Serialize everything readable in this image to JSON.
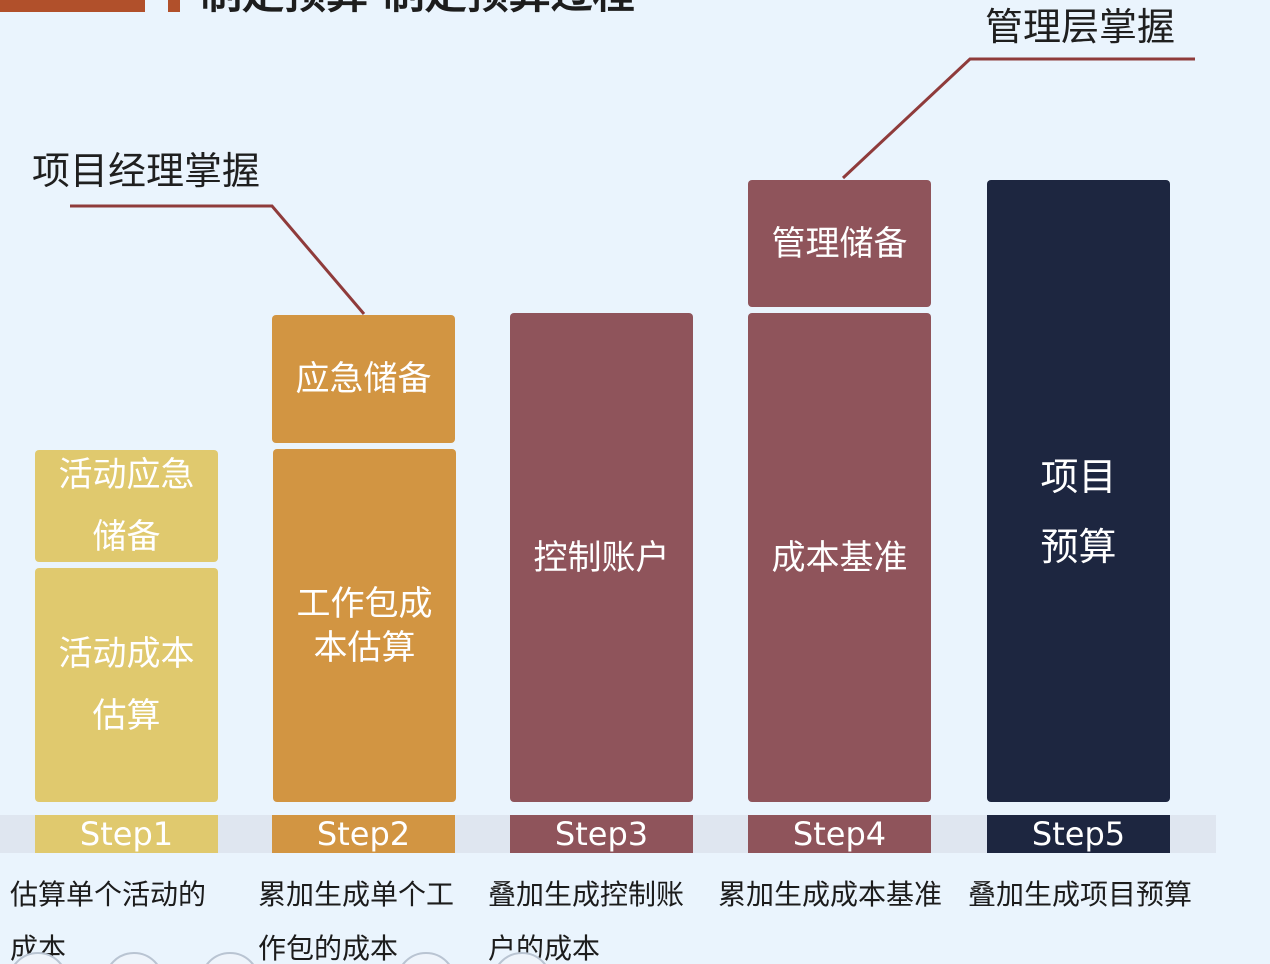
{
  "header": {
    "title": "制定预算 制定预算过程"
  },
  "callouts": {
    "manager_reserve_owner": "管理层掌握",
    "contingency_owner": "项目经理掌握"
  },
  "steps": [
    {
      "step_label": "Step1",
      "blocks": [
        "活动应急\n储备",
        "活动成本\n估算"
      ],
      "description": "估算单个活动的\n成本"
    },
    {
      "step_label": "Step2",
      "blocks": [
        "应急储备",
        "工作包成\n本估算"
      ],
      "description": "累加生成单个工\n作包的成本"
    },
    {
      "step_label": "Step3",
      "blocks": [
        "控制账户"
      ],
      "description": "叠加生成控制账\n户的成本"
    },
    {
      "step_label": "Step4",
      "blocks": [
        "管理储备",
        "成本基准"
      ],
      "description": "累加生成成本基准"
    },
    {
      "step_label": "Step5",
      "blocks": [
        "项目\n预算"
      ],
      "description": "叠加生成项目预算"
    }
  ],
  "colors": {
    "step1": "#e0c96e",
    "step2": "#d29542",
    "step3_4": "#8f545b",
    "step5": "#1d2640",
    "accent": "#b1502b",
    "background": "#eaf4fd"
  }
}
